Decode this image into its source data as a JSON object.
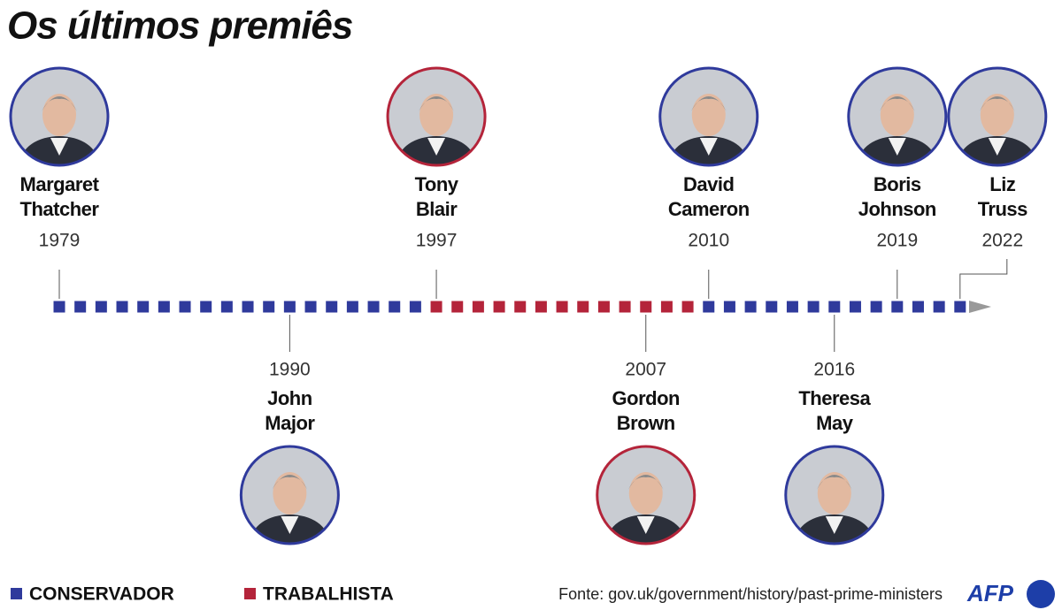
{
  "title": "Os últimos premiês",
  "parties": [
    {
      "name": "CONSERVADOR",
      "color": "#2f3a9c"
    },
    {
      "name": "TRABALHISTA",
      "color": "#b4243a"
    }
  ],
  "prime_ministers": [
    {
      "name": [
        "Margaret",
        "Thatcher"
      ],
      "year": "1979",
      "party": 0
    },
    {
      "name": [
        "John",
        "Major"
      ],
      "year": "1990",
      "party": 0
    },
    {
      "name": [
        "Tony",
        "Blair"
      ],
      "year": "1997",
      "party": 1
    },
    {
      "name": [
        "Gordon",
        "Brown"
      ],
      "year": "2007",
      "party": 1
    },
    {
      "name": [
        "David",
        "Cameron"
      ],
      "year": "2010",
      "party": 0
    },
    {
      "name": [
        "Theresa",
        "May"
      ],
      "year": "2016",
      "party": 0
    },
    {
      "name": [
        "Boris",
        "Johnson"
      ],
      "year": "2019",
      "party": 0
    },
    {
      "name": [
        "Liz",
        "Truss"
      ],
      "year": "2022",
      "party": 0
    }
  ],
  "source": "Fonte: gov.uk/government/history/past-prime-ministers",
  "logo": "AFP"
}
